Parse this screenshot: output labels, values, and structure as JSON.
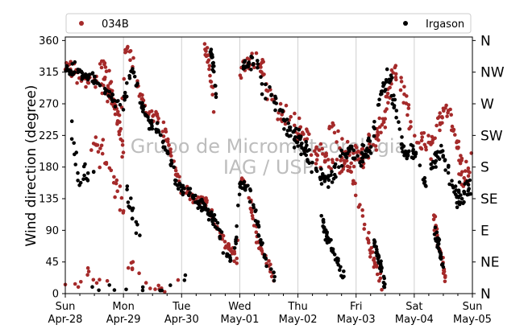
{
  "chart_data": {
    "type": "scatter",
    "title": "",
    "xlabel": "",
    "ylabel": "Wind direction (degree)",
    "ylim": [
      0,
      365
    ],
    "yticks": [
      0,
      45,
      90,
      135,
      180,
      225,
      270,
      315,
      360
    ],
    "xlim": [
      "2019-04-28",
      "2019-05-05"
    ],
    "xticks": [
      {
        "day": "Sun",
        "date": "Apr-28"
      },
      {
        "day": "Mon",
        "date": "Apr-29"
      },
      {
        "day": "Tue",
        "date": "Apr-30"
      },
      {
        "day": "Wed",
        "date": "May-01"
      },
      {
        "day": "Thu",
        "date": "May-02"
      },
      {
        "day": "Fri",
        "date": "May-03"
      },
      {
        "day": "Sat",
        "date": "May-04"
      },
      {
        "day": "Sun",
        "date": "May-05"
      }
    ],
    "compass_labels": [
      {
        "label": "N",
        "value": 0
      },
      {
        "label": "NE",
        "value": 45
      },
      {
        "label": "E",
        "value": 90
      },
      {
        "label": "SE",
        "value": 135
      },
      {
        "label": "S",
        "value": 180
      },
      {
        "label": "SW",
        "value": 225
      },
      {
        "label": "W",
        "value": 270
      },
      {
        "label": "NW",
        "value": 315
      },
      {
        "label": "N",
        "value": 360
      }
    ],
    "grid": "vertical",
    "legend_position": "top",
    "watermark": [
      "Grupo de Micrometeorologia",
      "IAG / USP"
    ],
    "series": [
      {
        "name": "034B",
        "color": "#a52a2a",
        "marker": "dot",
        "tracks": [
          {
            "points": [
              [
                0.0,
                325
              ],
              [
                0.25,
                310
              ],
              [
                0.5,
                300
              ],
              [
                0.7,
                285
              ],
              [
                0.85,
                270
              ],
              [
                0.95,
                240
              ],
              [
                1.05,
                350
              ],
              [
                1.15,
                330
              ],
              [
                1.3,
                280
              ],
              [
                1.45,
                250
              ],
              [
                1.6,
                250
              ],
              [
                1.75,
                220
              ],
              [
                1.9,
                170
              ],
              [
                2.0,
                150
              ],
              [
                2.2,
                140
              ],
              [
                2.4,
                130
              ],
              [
                2.55,
                110
              ],
              [
                2.65,
                90
              ],
              [
                2.8,
                70
              ],
              [
                2.95,
                50
              ],
              [
                3.0,
                165
              ],
              [
                3.15,
                150
              ],
              [
                3.25,
                95
              ],
              [
                3.35,
                70
              ],
              [
                3.5,
                35
              ],
              [
                3.6,
                20
              ]
            ],
            "spread": 16,
            "dots": 240
          },
          {
            "points": [
              [
                0.6,
                340
              ],
              [
                0.75,
                300
              ],
              [
                0.9,
                250
              ],
              [
                1.0,
                200
              ]
            ],
            "spread": 35,
            "dots": 40
          },
          {
            "points": [
              [
                0.45,
                225
              ],
              [
                0.6,
                200
              ],
              [
                0.75,
                180
              ],
              [
                0.9,
                150
              ],
              [
                1.0,
                120
              ]
            ],
            "spread": 30,
            "dots": 30
          },
          {
            "points": [
              [
                3.0,
                310
              ],
              [
                3.25,
                335
              ],
              [
                3.45,
                300
              ],
              [
                3.6,
                265
              ],
              [
                3.85,
                240
              ],
              [
                4.1,
                225
              ],
              [
                4.35,
                200
              ],
              [
                4.6,
                185
              ],
              [
                4.85,
                190
              ],
              [
                5.1,
                200
              ],
              [
                5.3,
                210
              ],
              [
                5.45,
                240
              ],
              [
                5.65,
                320
              ],
              [
                5.85,
                270
              ],
              [
                6.0,
                230
              ],
              [
                6.2,
                200
              ],
              [
                6.4,
                240
              ],
              [
                6.6,
                270
              ],
              [
                6.85,
                160
              ],
              [
                7.0,
                190
              ]
            ],
            "spread": 30,
            "dots": 260
          },
          {
            "points": [
              [
                4.5,
                250
              ],
              [
                4.7,
                220
              ],
              [
                4.9,
                180
              ],
              [
                5.05,
                130
              ],
              [
                5.2,
                80
              ],
              [
                5.35,
                40
              ],
              [
                5.45,
                10
              ]
            ],
            "spread": 25,
            "dots": 50
          },
          {
            "points": [
              [
                6.3,
                120
              ],
              [
                6.4,
                80
              ],
              [
                6.5,
                40
              ],
              [
                6.55,
                20
              ]
            ],
            "spread": 20,
            "dots": 30
          },
          {
            "points": [
              [
                2.4,
                350
              ],
              [
                2.5,
                310
              ],
              [
                2.55,
                270
              ]
            ],
            "spread": 20,
            "dots": 20
          },
          {
            "points": [
              [
                0.0,
                20
              ],
              [
                0.2,
                5
              ],
              [
                0.35,
                30
              ],
              [
                0.8,
                10
              ],
              [
                1.2,
                40
              ],
              [
                1.5,
                5
              ],
              [
                2.0,
                15
              ]
            ],
            "spread": 12,
            "dots": 25
          }
        ]
      },
      {
        "name": "Irgason",
        "color": "#000000",
        "marker": "dot",
        "tracks": [
          {
            "points": [
              [
                0.0,
                320
              ],
              [
                0.25,
                315
              ],
              [
                0.5,
                305
              ],
              [
                0.7,
                290
              ],
              [
                0.85,
                275
              ],
              [
                1.0,
                270
              ],
              [
                1.15,
                320
              ],
              [
                1.3,
                270
              ],
              [
                1.45,
                240
              ],
              [
                1.6,
                235
              ],
              [
                1.75,
                200
              ],
              [
                1.9,
                160
              ],
              [
                2.05,
                150
              ],
              [
                2.25,
                135
              ],
              [
                2.45,
                120
              ],
              [
                2.6,
                100
              ],
              [
                2.75,
                60
              ],
              [
                2.9,
                40
              ],
              [
                3.0,
                155
              ],
              [
                3.15,
                150
              ],
              [
                3.25,
                120
              ],
              [
                3.35,
                80
              ],
              [
                3.45,
                45
              ],
              [
                3.6,
                20
              ]
            ],
            "spread": 14,
            "dots": 260
          },
          {
            "points": [
              [
                3.05,
                330
              ],
              [
                3.25,
                330
              ],
              [
                3.45,
                285
              ],
              [
                3.65,
                265
              ],
              [
                3.85,
                235
              ],
              [
                4.05,
                215
              ],
              [
                4.2,
                195
              ],
              [
                4.35,
                170
              ],
              [
                4.55,
                160
              ],
              [
                4.75,
                200
              ],
              [
                4.9,
                200
              ],
              [
                5.05,
                190
              ],
              [
                5.25,
                205
              ],
              [
                5.45,
                300
              ],
              [
                5.6,
                300
              ],
              [
                5.8,
                200
              ],
              [
                6.0,
                200
              ],
              [
                6.2,
                160
              ],
              [
                6.45,
                210
              ],
              [
                6.7,
                140
              ],
              [
                6.9,
                140
              ],
              [
                7.0,
                165
              ]
            ],
            "spread": 24,
            "dots": 300
          },
          {
            "points": [
              [
                4.4,
                110
              ],
              [
                4.5,
                80
              ],
              [
                4.6,
                60
              ],
              [
                4.7,
                40
              ],
              [
                4.8,
                20
              ]
            ],
            "spread": 14,
            "dots": 40
          },
          {
            "points": [
              [
                5.3,
                80
              ],
              [
                5.4,
                50
              ],
              [
                5.45,
                30
              ],
              [
                5.5,
                10
              ]
            ],
            "spread": 12,
            "dots": 35
          },
          {
            "points": [
              [
                6.35,
                90
              ],
              [
                6.45,
                60
              ],
              [
                6.5,
                30
              ]
            ],
            "spread": 15,
            "dots": 25
          },
          {
            "points": [
              [
                2.5,
                350
              ],
              [
                2.55,
                320
              ],
              [
                2.6,
                280
              ]
            ],
            "spread": 15,
            "dots": 20
          },
          {
            "points": [
              [
                0.1,
                220
              ],
              [
                0.2,
                180
              ],
              [
                0.3,
                170
              ],
              [
                0.5,
                160
              ]
            ],
            "spread": 40,
            "dots": 20
          },
          {
            "points": [
              [
                1.05,
                150
              ],
              [
                1.2,
                100
              ],
              [
                1.3,
                80
              ]
            ],
            "spread": 30,
            "dots": 15
          },
          {
            "points": [
              [
                0.05,
                90
              ],
              [
                0.15,
                10
              ],
              [
                1.7,
                5
              ],
              [
                2.1,
                25
              ]
            ],
            "spread": 8,
            "dots": 12
          }
        ]
      }
    ]
  }
}
